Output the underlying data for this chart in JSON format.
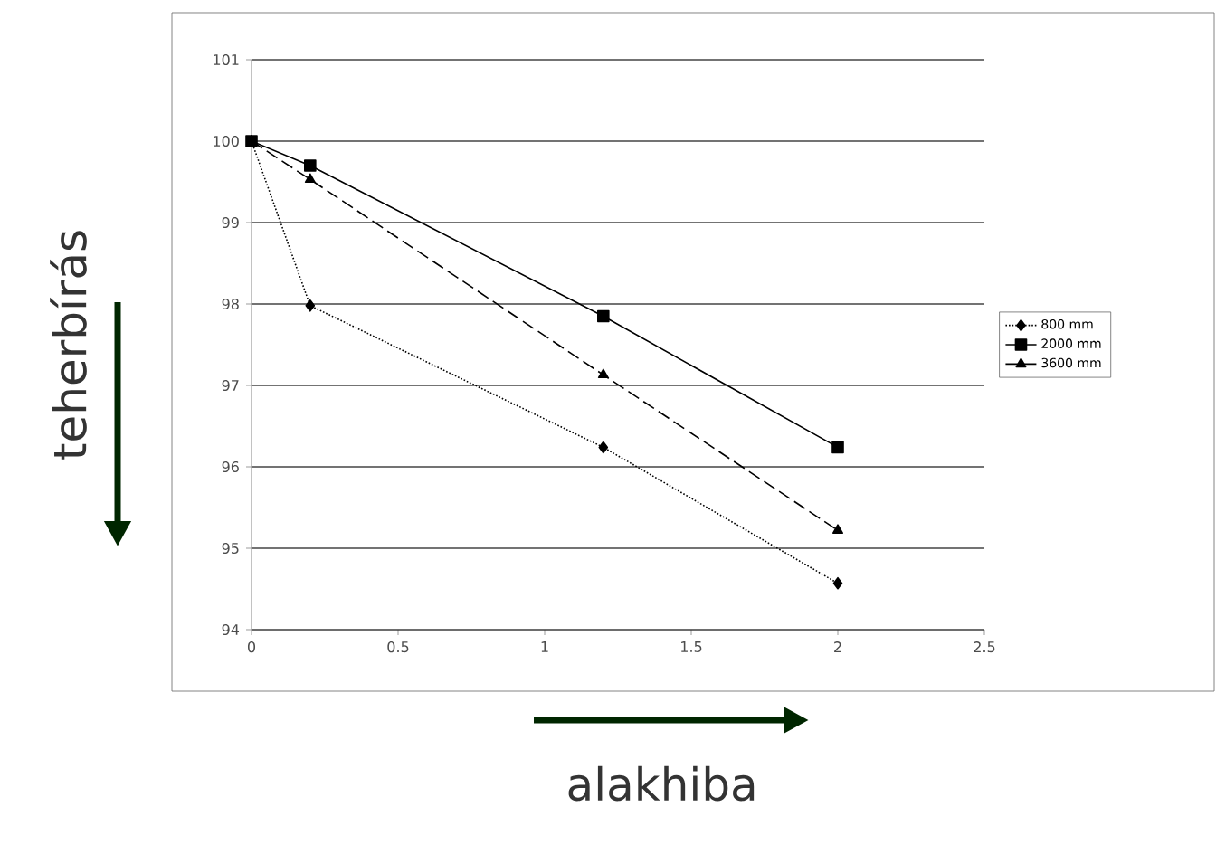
{
  "chart_data": {
    "type": "line",
    "xlabel": "alakhiba",
    "ylabel": "teherbírás",
    "x": [
      0,
      0.2,
      1.2,
      2
    ],
    "series": [
      {
        "name": "800 mm",
        "color": "#000000",
        "marker": "diamond",
        "line_style": "dotted",
        "values": [
          100,
          97.98,
          96.24,
          94.57
        ]
      },
      {
        "name": "2000 mm",
        "color": "#000000",
        "marker": "square",
        "line_style": "solid",
        "values": [
          100,
          99.7,
          97.85,
          96.24
        ]
      },
      {
        "name": "3600 mm",
        "color": "#000000",
        "marker": "triangle",
        "line_style": "dashed",
        "values": [
          100,
          99.53,
          97.13,
          95.22
        ]
      }
    ],
    "xlim": [
      0,
      2.5
    ],
    "xticks": [
      0,
      0.5,
      1,
      1.5,
      2,
      2.5
    ],
    "ylim": [
      94,
      101
    ],
    "yticks": [
      94,
      95,
      96,
      97,
      98,
      99,
      100,
      101
    ],
    "grid": "y",
    "legend": "right"
  }
}
